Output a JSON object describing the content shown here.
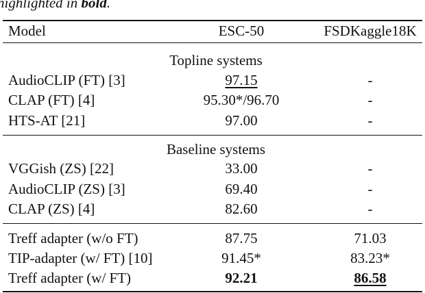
{
  "caption": {
    "prefix": "highlighted in ",
    "bold": "bold",
    "suffix": "."
  },
  "table": {
    "header": [
      "Model",
      "ESC-50",
      "FSDKaggle18K"
    ],
    "sections": [
      {
        "title": "Topline systems",
        "rows": [
          [
            "AudioCLIP (FT) [3]",
            "97.15",
            "-"
          ],
          [
            "CLAP (FT) [4]",
            "95.30*/96.70",
            "-"
          ],
          [
            "HTS-AT [21]",
            "97.00",
            "-"
          ]
        ]
      },
      {
        "title": "Baseline systems",
        "rows": [
          [
            "VGGish (ZS) [22]",
            "33.00",
            "-"
          ],
          [
            "AudioCLIP (ZS) [3]",
            "69.40",
            "-"
          ],
          [
            "CLAP (ZS) [4]",
            "82.60",
            "-"
          ]
        ]
      },
      {
        "rows": [
          [
            "Treff adapter (w/o FT)",
            "87.75",
            "71.03"
          ],
          [
            "TIP-adapter (w/ FT) [10]",
            "91.45*",
            "83.23*"
          ],
          [
            "Treff adapter (w/ FT)",
            "92.21",
            "86.58"
          ]
        ]
      }
    ]
  }
}
